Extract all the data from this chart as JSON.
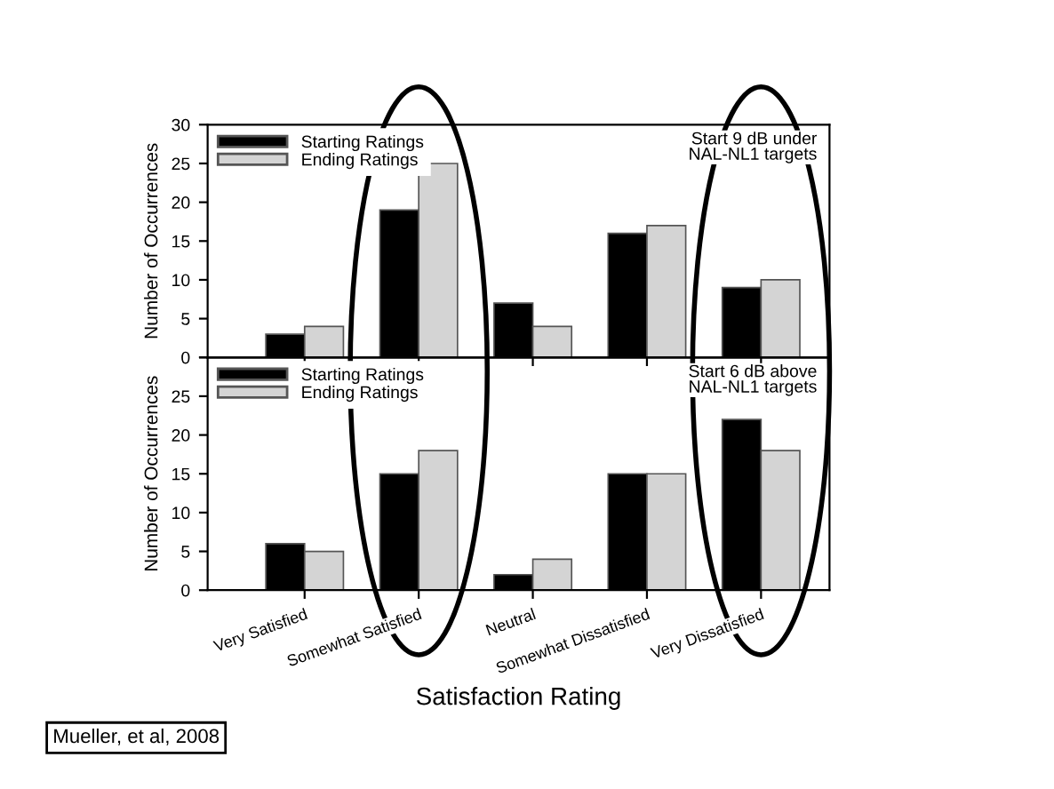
{
  "chart_data": [
    {
      "type": "bar",
      "categories": [
        null,
        null,
        null,
        null,
        null
      ],
      "ylabel": "Number of Occurrences",
      "ylim": [
        0,
        30
      ],
      "yticks": [
        0,
        5,
        10,
        15,
        20,
        25,
        30
      ],
      "tick_labels": "y",
      "legend": "top left",
      "annotations": [
        "Start 9 dB under\nNAL-NL1 targets"
      ],
      "series": [
        {
          "name": "Starting Ratings",
          "color": "#000000",
          "values": [
            3,
            19,
            7,
            16,
            9
          ]
        },
        {
          "name": "Ending Ratings",
          "color": "#d4d4d4",
          "values": [
            4,
            25,
            4,
            17,
            10
          ]
        }
      ]
    },
    {
      "type": "bar",
      "categories": [
        "Very Satisfied",
        "Somewhat Satisfied",
        "Neutral",
        "Somewhat Dissatisfied",
        "Very Dissatisfied"
      ],
      "ylabel": "Number of Occurrences",
      "xlabel": "Satisfaction Rating",
      "ylim": [
        0,
        30
      ],
      "yticks": [
        0,
        5,
        10,
        15,
        20,
        25,
        {
          "value": 30,
          "label": null
        }
      ],
      "legend": "top left",
      "annotations": [
        "Start 6 dB above\nNAL-NL1 targets",
        "Mueller, et al, 2008"
      ],
      "series": [
        {
          "name": "Starting Ratings",
          "color": "#000000",
          "values": [
            6,
            15,
            2,
            15,
            22
          ]
        },
        {
          "name": "Ending Ratings",
          "color": "#d4d4d4",
          "values": [
            5,
            18,
            4,
            15,
            18
          ]
        }
      ]
    }
  ]
}
